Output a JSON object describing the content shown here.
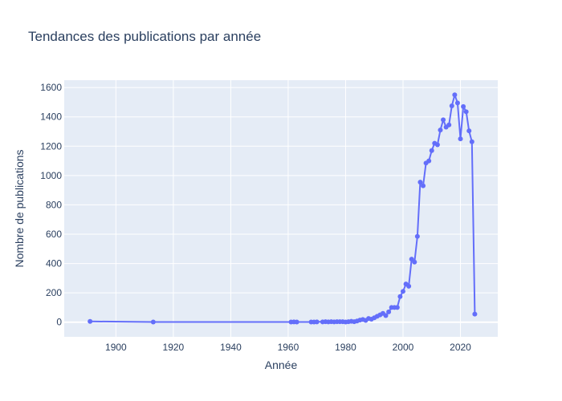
{
  "chart_data": {
    "type": "line",
    "title": "Tendances des publications par année",
    "xlabel": "Année",
    "ylabel": "Nombre de publications",
    "xlim": [
      1882,
      2033
    ],
    "ylim": [
      -100,
      1650
    ],
    "xticks": [
      1900,
      1920,
      1940,
      1960,
      1980,
      2000,
      2020
    ],
    "yticks": [
      0,
      200,
      400,
      600,
      800,
      1000,
      1200,
      1400,
      1600
    ],
    "grid": true,
    "legend": false,
    "colors": {
      "series": "#636efa",
      "plot_bg": "#e5ecf6",
      "grid": "#ffffff",
      "text": "#2a3f5f"
    },
    "series": [
      {
        "x": [
          1891,
          1913,
          1961,
          1962,
          1963,
          1968,
          1969,
          1970,
          1972,
          1973,
          1974,
          1975,
          1976,
          1977,
          1978,
          1979,
          1980,
          1981,
          1982,
          1983,
          1984,
          1985,
          1986,
          1987,
          1988,
          1989,
          1990,
          1991,
          1992,
          1993,
          1994,
          1995,
          1996,
          1997,
          1998,
          1999,
          2000,
          2001,
          2002,
          2003,
          2004,
          2005,
          2006,
          2007,
          2008,
          2009,
          2010,
          2011,
          2012,
          2013,
          2014,
          2015,
          2016,
          2017,
          2018,
          2019,
          2020,
          2021,
          2022,
          2023,
          2024,
          2025
        ],
        "y": [
          5,
          1,
          1,
          2,
          1,
          1,
          1,
          2,
          2,
          3,
          2,
          3,
          2,
          3,
          3,
          3,
          1,
          3,
          6,
          3,
          8,
          14,
          18,
          12,
          25,
          20,
          30,
          40,
          50,
          60,
          45,
          70,
          100,
          100,
          100,
          175,
          210,
          260,
          245,
          430,
          410,
          585,
          955,
          930,
          1085,
          1100,
          1170,
          1220,
          1210,
          1310,
          1380,
          1330,
          1345,
          1475,
          1550,
          1495,
          1250,
          1470,
          1435,
          1305,
          1230,
          55
        ]
      }
    ]
  }
}
